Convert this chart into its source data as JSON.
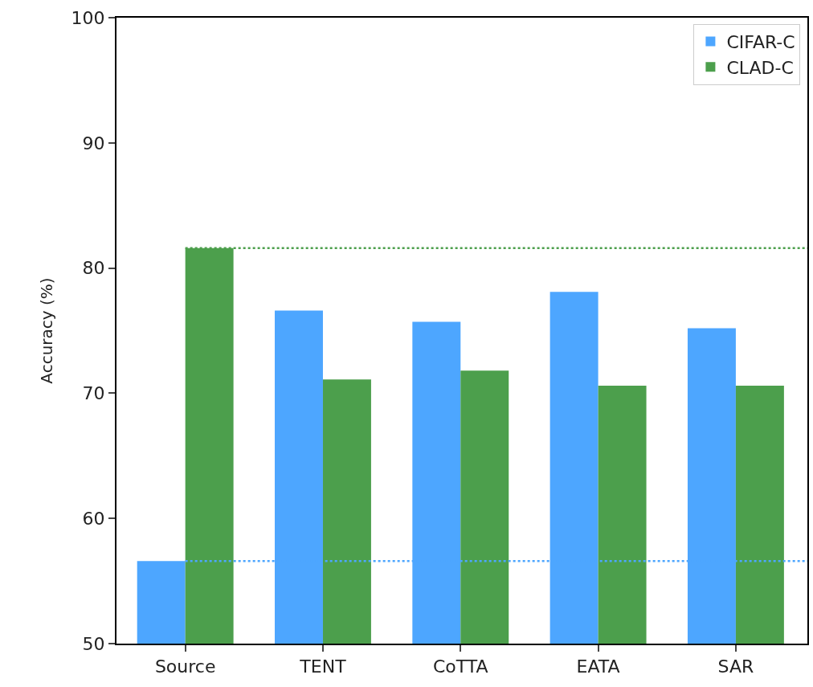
{
  "chart_data": {
    "type": "bar",
    "ylabel": "Accuracy (%)",
    "categories": [
      "Source",
      "TENT",
      "CoTTA",
      "EATA",
      "SAR"
    ],
    "series": [
      {
        "name": "CIFAR-C",
        "color": "#4da6ff",
        "values": [
          56.6,
          76.6,
          75.7,
          78.1,
          75.2
        ]
      },
      {
        "name": "CLAD-C",
        "color": "#4c9f4c",
        "values": [
          81.6,
          71.1,
          71.8,
          70.6,
          70.6
        ]
      }
    ],
    "ylim": [
      50,
      100
    ],
    "yticks": [
      50,
      60,
      70,
      80,
      90,
      100
    ],
    "grid": false,
    "legend": "top right",
    "ref_lines": [
      {
        "axis": "y",
        "value": 81.6,
        "color": "#4c9f4c",
        "line_style": "dotted"
      },
      {
        "axis": "y",
        "value": 56.6,
        "color": "#4da6ff",
        "line_style": "dotted"
      }
    ]
  }
}
